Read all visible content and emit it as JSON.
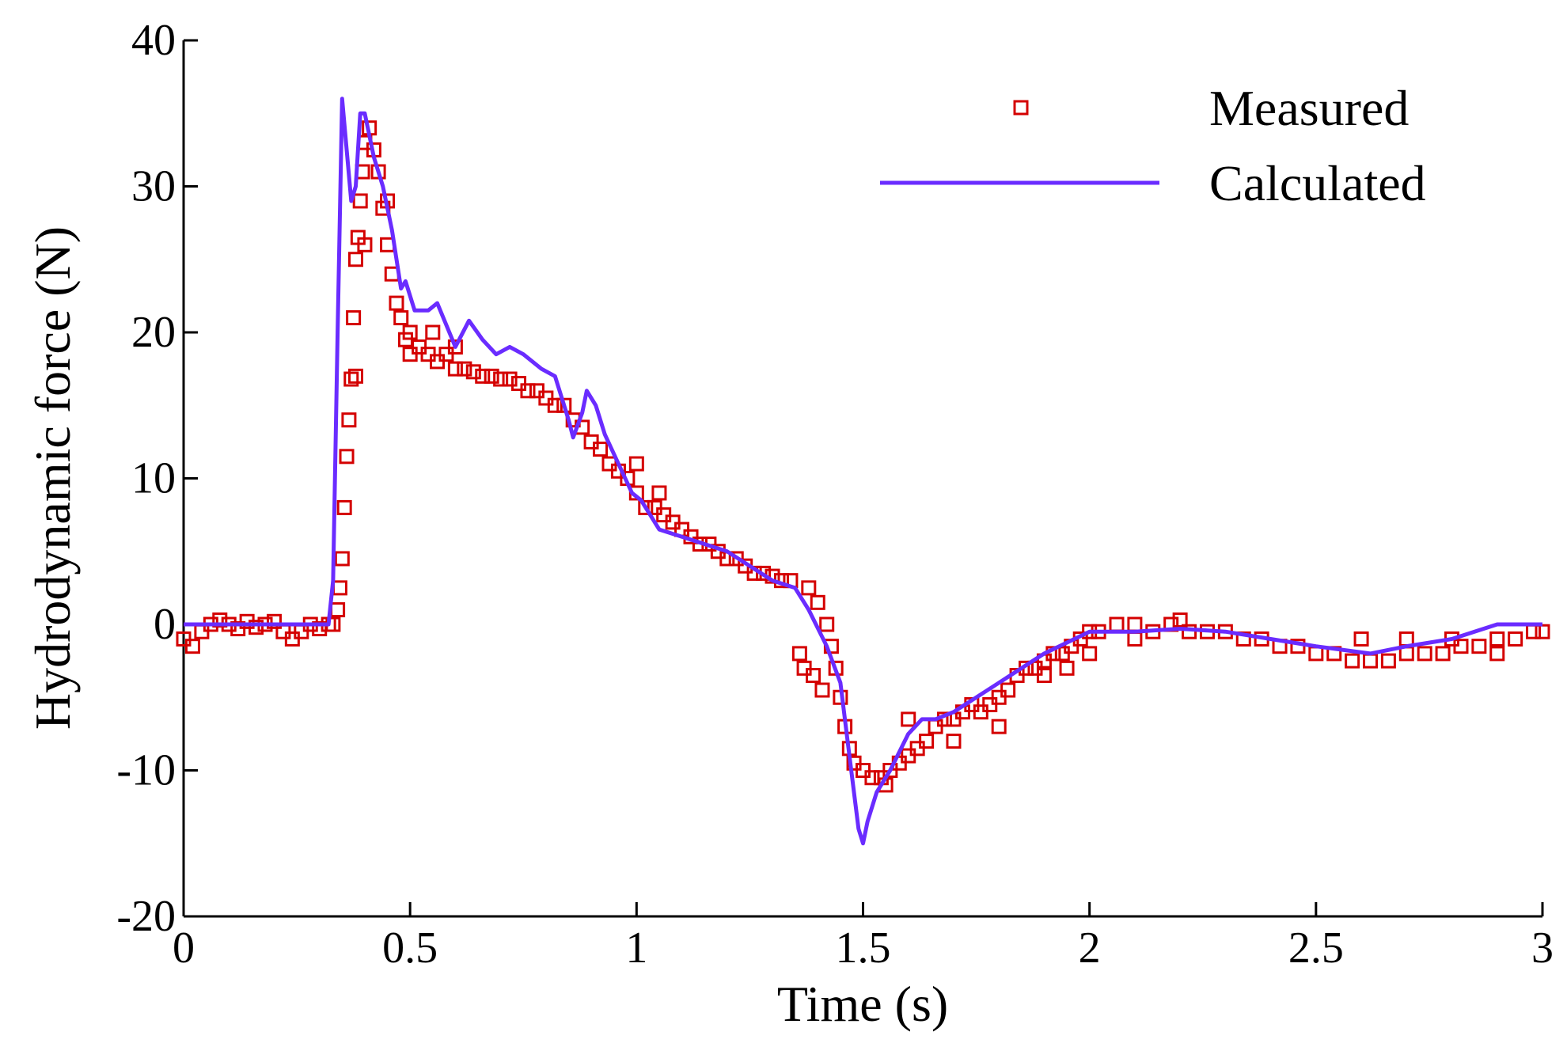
{
  "chart_data": {
    "type": "line",
    "x_label": "Time (s)",
    "y_label": "Hydrodynamic force (N)",
    "xlim": [
      0,
      3
    ],
    "ylim": [
      -20,
      40
    ],
    "xticks": [
      0,
      0.5,
      1,
      1.5,
      2,
      2.5,
      3
    ],
    "yticks": [
      -20,
      -10,
      0,
      10,
      20,
      30,
      40
    ],
    "legend": "upper right",
    "series": [
      {
        "name": "Measured",
        "color": "#d40000",
        "mode": "markers",
        "marker": "square",
        "x": [
          0,
          0.02,
          0.04,
          0.06,
          0.08,
          0.1,
          0.12,
          0.14,
          0.16,
          0.18,
          0.2,
          0.22,
          0.24,
          0.26,
          0.28,
          0.3,
          0.32,
          0.33,
          0.34,
          0.345,
          0.35,
          0.355,
          0.36,
          0.365,
          0.37,
          0.375,
          0.38,
          0.385,
          0.39,
          0.395,
          0.4,
          0.41,
          0.42,
          0.43,
          0.44,
          0.45,
          0.46,
          0.47,
          0.48,
          0.49,
          0.5,
          0.52,
          0.54,
          0.56,
          0.58,
          0.6,
          0.62,
          0.64,
          0.66,
          0.68,
          0.7,
          0.72,
          0.74,
          0.76,
          0.78,
          0.8,
          0.82,
          0.84,
          0.86,
          0.88,
          0.9,
          0.92,
          0.94,
          0.96,
          0.98,
          1.0,
          1.02,
          1.04,
          1.06,
          1.08,
          1.1,
          1.12,
          1.14,
          1.16,
          1.18,
          1.2,
          1.22,
          1.24,
          1.26,
          1.28,
          1.3,
          1.32,
          1.34,
          1.36,
          1.37,
          1.38,
          1.39,
          1.4,
          1.41,
          1.42,
          1.43,
          1.44,
          1.45,
          1.46,
          1.47,
          1.48,
          1.5,
          1.52,
          1.54,
          1.56,
          1.58,
          1.6,
          1.62,
          1.64,
          1.66,
          1.68,
          1.7,
          1.72,
          1.74,
          1.76,
          1.78,
          1.8,
          1.82,
          1.84,
          1.86,
          1.88,
          1.9,
          1.92,
          1.94,
          1.96,
          1.98,
          2.0,
          2.02,
          2.06,
          2.1,
          2.14,
          2.18,
          2.22,
          2.26,
          2.3,
          2.34,
          2.38,
          2.42,
          2.46,
          2.5,
          2.54,
          2.58,
          2.62,
          2.66,
          2.7,
          2.74,
          2.78,
          2.82,
          2.86,
          2.9,
          2.94,
          2.98,
          3.0,
          0.5,
          0.55,
          0.6,
          1.55,
          1.6,
          1.7,
          1.8,
          1.9,
          1.95,
          2.0,
          2.1,
          2.2,
          2.6,
          2.7,
          2.8,
          2.9,
          1.0,
          1.05,
          0.45,
          0.4,
          0.38
        ],
        "values": [
          -1,
          -1.5,
          -0.5,
          0,
          0.3,
          0,
          -0.3,
          0.2,
          -0.2,
          0,
          0.2,
          -0.5,
          -1,
          -0.5,
          0,
          -0.3,
          0,
          0,
          1,
          2.5,
          4.5,
          8,
          11.5,
          14,
          16.8,
          21,
          25,
          26.5,
          29,
          31,
          33,
          34,
          32.5,
          31,
          28.5,
          26,
          24,
          22,
          21,
          19.5,
          18.5,
          19,
          18.5,
          18,
          18.5,
          17.5,
          17.5,
          17.3,
          17,
          17,
          16.8,
          16.8,
          16.5,
          16,
          16,
          15.5,
          15,
          15,
          14,
          13.5,
          12.5,
          12,
          11,
          10.5,
          10,
          9,
          8,
          8,
          7.5,
          7,
          6.5,
          6,
          5.5,
          5.5,
          5,
          4.5,
          4.5,
          4,
          3.5,
          3.5,
          3.3,
          3,
          3,
          -2,
          -3,
          2.5,
          -3.5,
          1.5,
          -4.5,
          0,
          -1.5,
          -3,
          -5,
          -7,
          -8.5,
          -9.5,
          -10,
          -10.5,
          -10.5,
          -10,
          -9.5,
          -9,
          -8.5,
          -8,
          -7,
          -6.5,
          -6.5,
          -6,
          -5.5,
          -6,
          -5.5,
          -5,
          -4.5,
          -3.5,
          -3,
          -3,
          -2.5,
          -2,
          -2,
          -1.5,
          -1,
          -0.5,
          -0.5,
          0,
          -1,
          -0.5,
          0,
          -0.5,
          -0.5,
          -0.5,
          -1,
          -1,
          -1.5,
          -1.5,
          -2,
          -2,
          -2.5,
          -2.5,
          -2.5,
          -2,
          -2,
          -2,
          -1.5,
          -1.5,
          -1,
          -1,
          -0.5,
          -0.5,
          20,
          20,
          19,
          -11,
          -6.5,
          -8,
          -7,
          -3.5,
          -3,
          -2,
          0,
          0.3,
          -1,
          -1,
          -1,
          -2,
          11,
          9,
          29,
          26,
          17
        ]
      },
      {
        "name": "Calculated",
        "color": "#6a2cff",
        "mode": "line",
        "x": [
          0,
          0.1,
          0.2,
          0.32,
          0.33,
          0.34,
          0.35,
          0.37,
          0.38,
          0.39,
          0.4,
          0.42,
          0.44,
          0.46,
          0.47,
          0.48,
          0.49,
          0.51,
          0.54,
          0.56,
          0.58,
          0.6,
          0.63,
          0.66,
          0.69,
          0.72,
          0.75,
          0.79,
          0.82,
          0.85,
          0.86,
          0.88,
          0.89,
          0.91,
          0.93,
          0.96,
          0.99,
          1.01,
          1.03,
          1.05,
          1.1,
          1.15,
          1.2,
          1.25,
          1.3,
          1.35,
          1.38,
          1.42,
          1.45,
          1.47,
          1.49,
          1.5,
          1.51,
          1.53,
          1.56,
          1.6,
          1.63,
          1.66,
          1.7,
          1.8,
          1.9,
          2.0,
          2.1,
          2.2,
          2.3,
          2.4,
          2.5,
          2.62,
          2.7,
          2.8,
          2.9,
          3.0
        ],
        "values": [
          0,
          0,
          0,
          0,
          3,
          20,
          36,
          29,
          30,
          35,
          35,
          32,
          30,
          27,
          25,
          23,
          23.5,
          21.5,
          21.5,
          22,
          20.5,
          19,
          20.8,
          19.5,
          18.5,
          19,
          18.5,
          17.5,
          17,
          14,
          12.8,
          14.5,
          16,
          15,
          13,
          11,
          9,
          8.5,
          7.5,
          6.5,
          6,
          5.5,
          5,
          4,
          3,
          2.5,
          1,
          -1.5,
          -4,
          -9,
          -14,
          -15,
          -13.5,
          -11.5,
          -10,
          -7.5,
          -6.5,
          -6.5,
          -6,
          -4,
          -2,
          -0.5,
          -0.5,
          -0.3,
          -0.5,
          -1,
          -1.5,
          -2,
          -1.5,
          -1,
          0,
          0
        ]
      }
    ]
  }
}
